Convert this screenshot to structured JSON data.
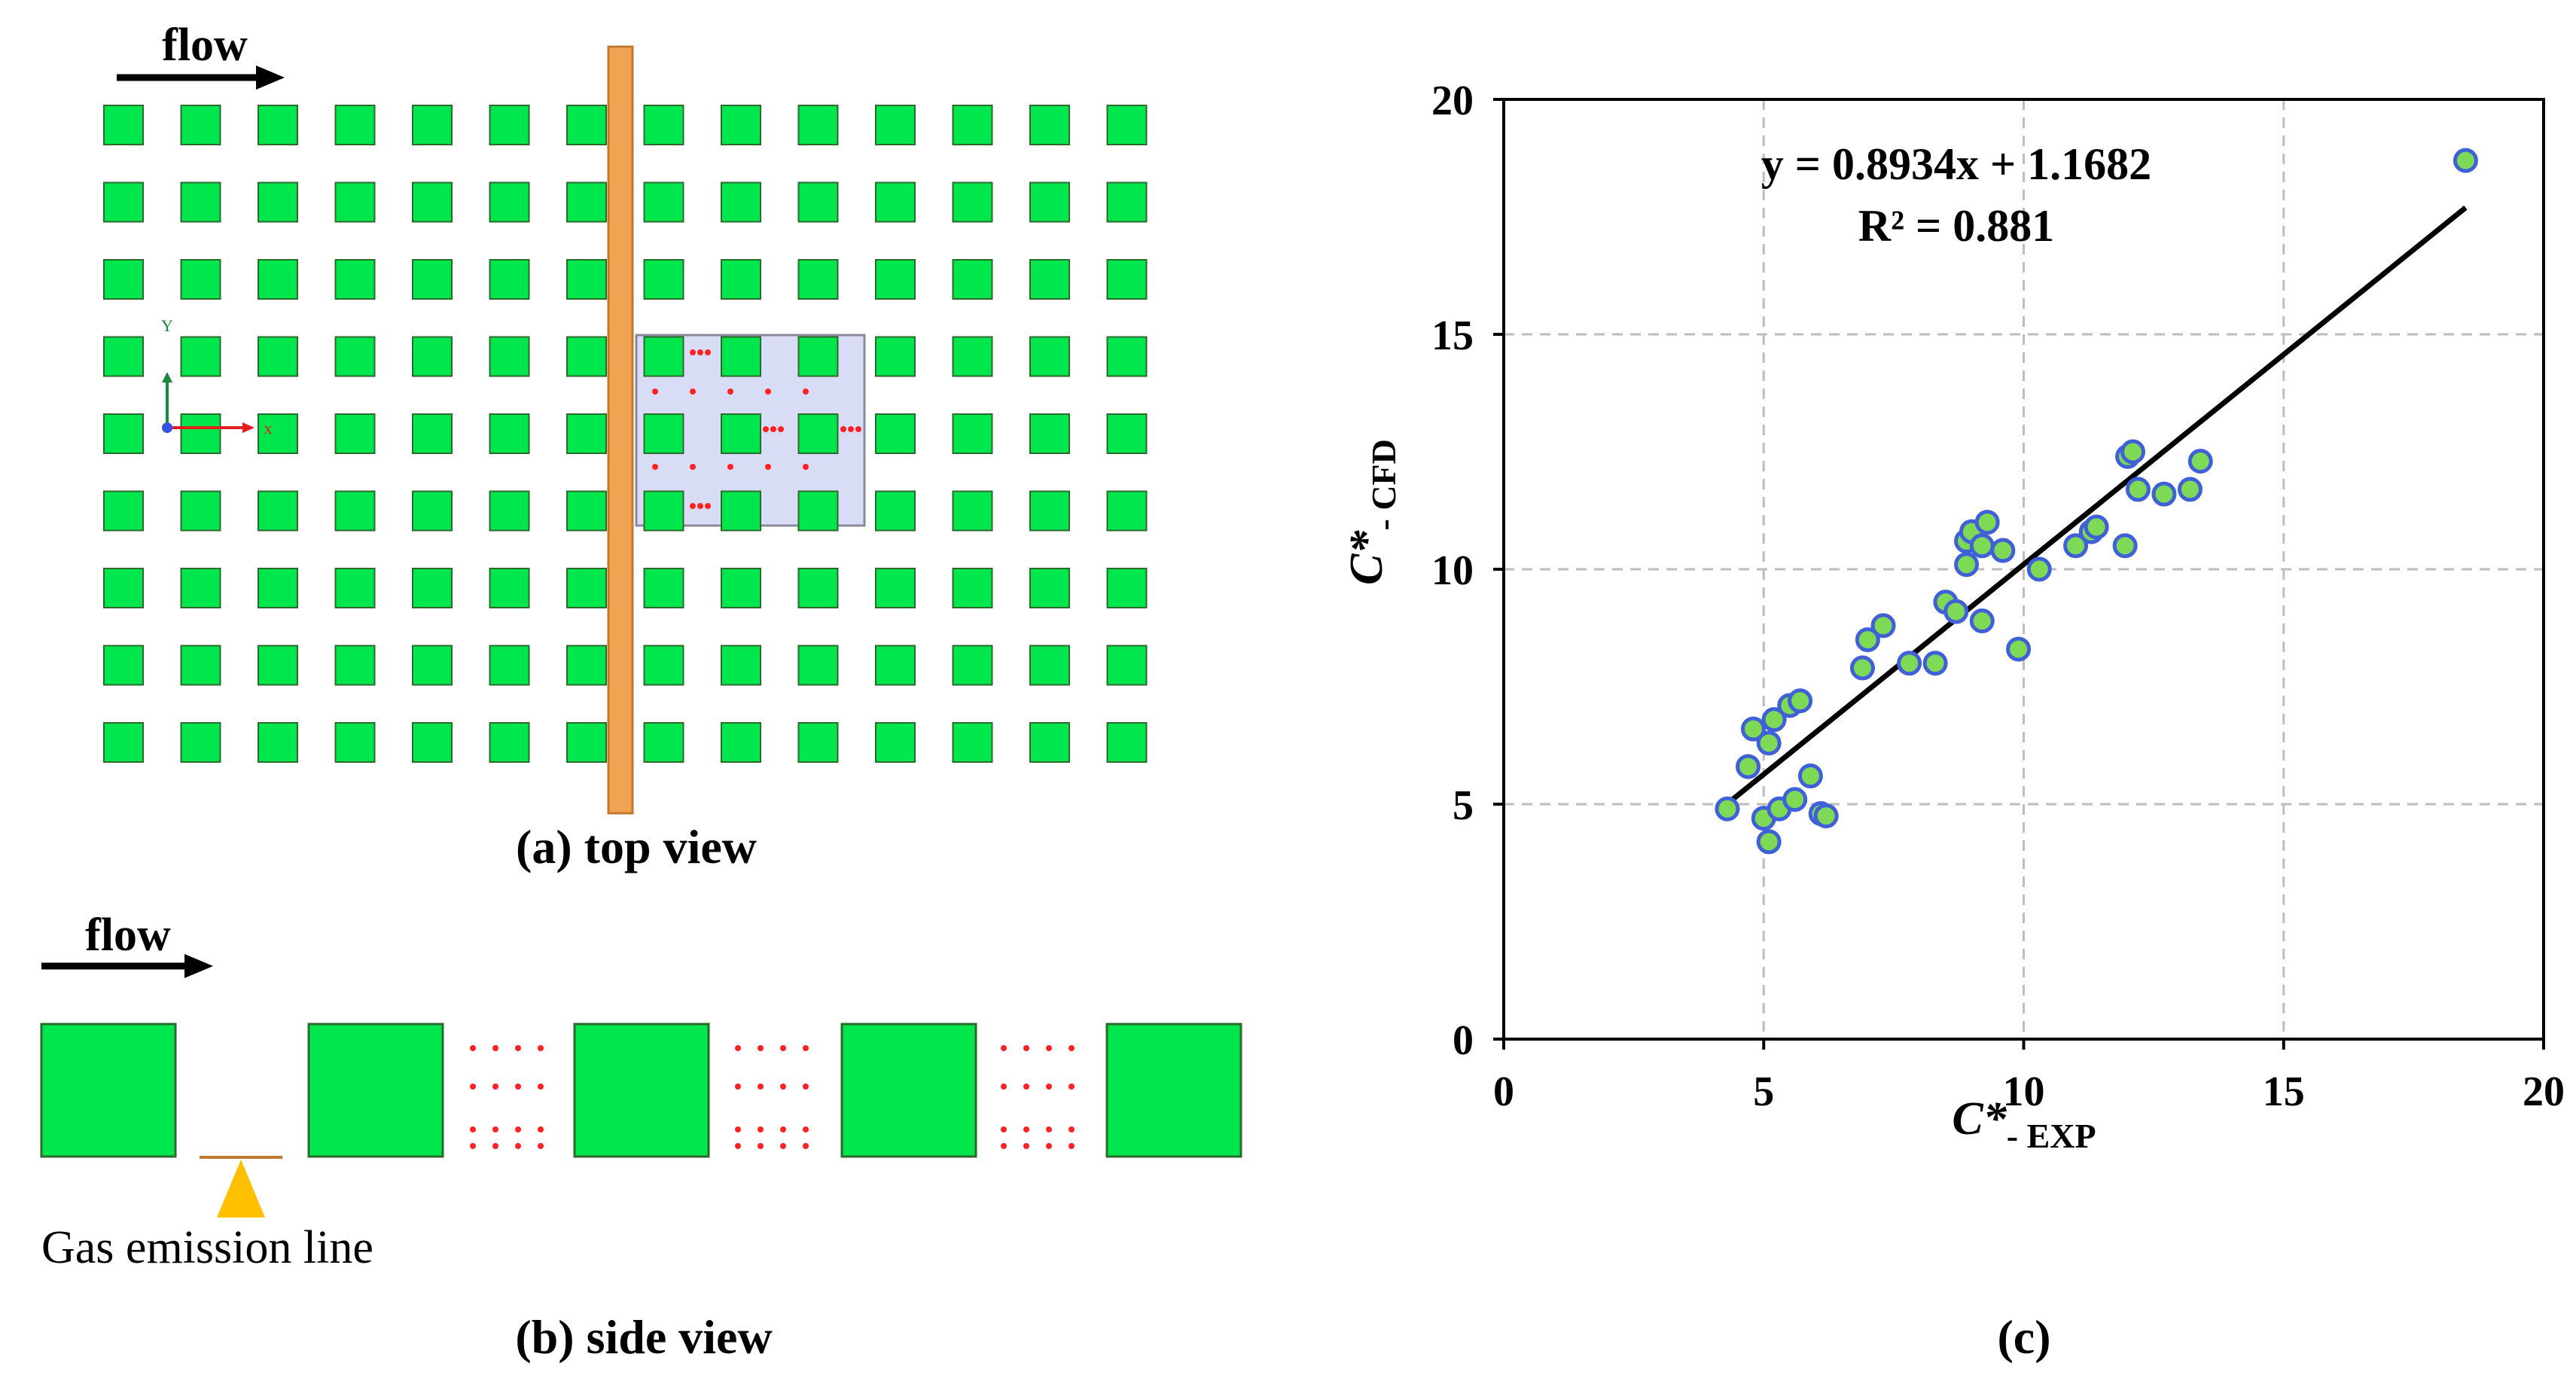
{
  "colors": {
    "block": "#00e64d",
    "block_stroke": "#2c6a2c",
    "gas_line": "#f0a451",
    "gas_line_stroke": "#c07a2e",
    "highlight": "#d8dcf5",
    "sample_dot": "#ff2222",
    "marker_fill": "#7ed957",
    "marker_stroke": "#4060d8",
    "emission_marker": "#ffc000"
  },
  "panel_a": {
    "flow_label": "flow",
    "caption": "(a) top view",
    "axis_labels": {
      "x": "x",
      "y": "Y"
    },
    "grid": {
      "rows": 9,
      "cols": 14
    }
  },
  "panel_b": {
    "flow_label": "flow",
    "emission_label": "Gas emission line",
    "caption": "(b) side view",
    "blocks": 5
  },
  "panel_c": {
    "caption": "(c)",
    "equation": "y = 0.8934x + 1.1682",
    "r_squared": "R² = 0.881"
  },
  "chart_data": {
    "type": "scatter",
    "title": "",
    "xlabel": {
      "main": "C*",
      "sub": "- EXP"
    },
    "ylabel": {
      "main": "C*",
      "sub": "- CFD"
    },
    "xlim": [
      0,
      20
    ],
    "ylim": [
      0,
      20
    ],
    "xticks": [
      "0",
      "5",
      "10",
      "15",
      "20"
    ],
    "yticks": [
      "0",
      "5",
      "10",
      "15",
      "20"
    ],
    "grid": true,
    "trendline": {
      "slope": 0.8934,
      "intercept": 1.1682,
      "x_range": [
        4.3,
        18.5
      ]
    },
    "points": [
      [
        4.3,
        4.9
      ],
      [
        4.7,
        5.8
      ],
      [
        4.8,
        6.6
      ],
      [
        5.0,
        4.7
      ],
      [
        5.1,
        6.3
      ],
      [
        5.1,
        4.2
      ],
      [
        5.2,
        6.8
      ],
      [
        5.3,
        4.9
      ],
      [
        5.5,
        7.1
      ],
      [
        5.6,
        5.1
      ],
      [
        5.7,
        7.2
      ],
      [
        5.9,
        5.6
      ],
      [
        6.1,
        4.8
      ],
      [
        6.2,
        4.75
      ],
      [
        6.9,
        7.9
      ],
      [
        7.0,
        8.5
      ],
      [
        7.3,
        8.8
      ],
      [
        7.8,
        8.0
      ],
      [
        8.3,
        8.0
      ],
      [
        8.5,
        9.3
      ],
      [
        8.7,
        9.1
      ],
      [
        8.9,
        10.6
      ],
      [
        8.9,
        10.1
      ],
      [
        9.0,
        10.8
      ],
      [
        9.2,
        10.5
      ],
      [
        9.2,
        8.9
      ],
      [
        9.3,
        11.0
      ],
      [
        9.6,
        10.4
      ],
      [
        9.9,
        8.3
      ],
      [
        10.3,
        10.0
      ],
      [
        11.0,
        10.5
      ],
      [
        11.3,
        10.8
      ],
      [
        11.4,
        10.9
      ],
      [
        11.95,
        10.5
      ],
      [
        12.0,
        12.4
      ],
      [
        12.1,
        12.5
      ],
      [
        12.2,
        11.7
      ],
      [
        12.7,
        11.6
      ],
      [
        13.2,
        11.7
      ],
      [
        13.4,
        12.3
      ],
      [
        18.5,
        18.7
      ]
    ]
  }
}
